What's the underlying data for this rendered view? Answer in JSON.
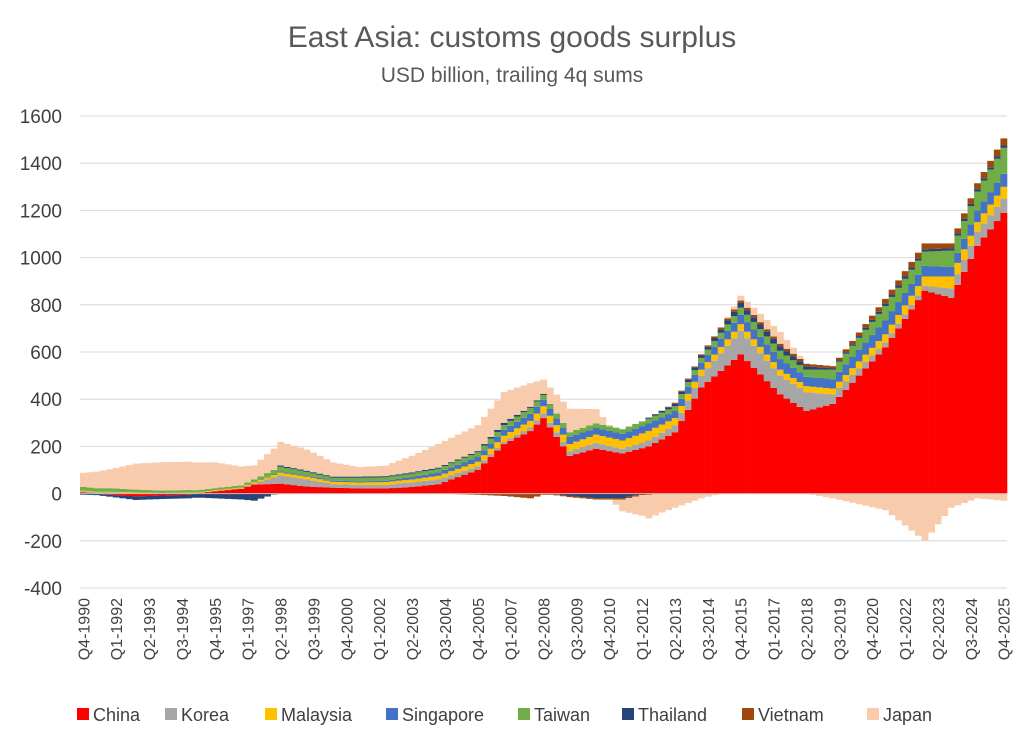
{
  "chart_data": {
    "type": "area",
    "stacked": true,
    "title": "East Asia: customs goods surplus",
    "subtitle": "USD billion, trailing 4q sums",
    "xlabel": "",
    "ylabel": "",
    "ylim": [
      -400,
      1600
    ],
    "yticks": [
      -400,
      -200,
      0,
      200,
      400,
      600,
      800,
      1000,
      1200,
      1400,
      1600
    ],
    "xtick_labels": [
      "Q4-1990",
      "Q1-1992",
      "Q2-1993",
      "Q3-1994",
      "Q4-1995",
      "Q1-1997",
      "Q2-1998",
      "Q3-1999",
      "Q4-2000",
      "Q1-2002",
      "Q2-2003",
      "Q3-2004",
      "Q4-2005",
      "Q1-2007",
      "Q2-2008",
      "Q3-2009",
      "Q4-2010",
      "Q1-2012",
      "Q2-2013",
      "Q3-2014",
      "Q4-2015",
      "Q1-2017",
      "Q2-2018",
      "Q3-2019",
      "Q4-2020",
      "Q1-2022",
      "Q2-2023",
      "Q3-2024",
      "Q4-2025"
    ],
    "grid": true,
    "legend_position": "bottom",
    "anchor_quarters": [
      0,
      5,
      10,
      15,
      20,
      25,
      30,
      35,
      40,
      45,
      50,
      55,
      60,
      65,
      70,
      75,
      80,
      85,
      90,
      95,
      100,
      105,
      110,
      115,
      120,
      125,
      130,
      135,
      140
    ],
    "series": [
      {
        "name": "China",
        "color": "#FF0000",
        "values": [
          5,
          -5,
          -12,
          -8,
          -5,
          10,
          20,
          38,
          42,
          30,
          25,
          22,
          22,
          28,
          40,
          100,
          210,
          265,
          320,
          160,
          190,
          170,
          200,
          260,
          450,
          590,
          420,
          350,
          380,
          620,
          860,
          830,
          1050,
          1190
        ]
      },
      {
        "name": "Korea",
        "color": "#A6A6A6",
        "values": [
          5,
          5,
          2,
          0,
          2,
          2,
          2,
          5,
          35,
          30,
          15,
          15,
          15,
          20,
          20,
          15,
          10,
          15,
          20,
          20,
          25,
          20,
          25,
          30,
          50,
          100,
          80,
          80,
          40,
          20,
          20,
          40,
          60,
          60
        ]
      },
      {
        "name": "Malaysia",
        "color": "#FFC000",
        "values": [
          3,
          3,
          3,
          3,
          3,
          3,
          3,
          5,
          12,
          12,
          10,
          10,
          12,
          12,
          15,
          20,
          25,
          28,
          30,
          30,
          35,
          35,
          40,
          30,
          25,
          28,
          25,
          25,
          25,
          35,
          40,
          50,
          40,
          50
        ]
      },
      {
        "name": "Singapore",
        "color": "#4472C4",
        "values": [
          0,
          0,
          0,
          0,
          0,
          0,
          0,
          0,
          5,
          5,
          5,
          5,
          5,
          10,
          15,
          20,
          25,
          30,
          28,
          30,
          28,
          28,
          32,
          30,
          30,
          40,
          45,
          40,
          40,
          60,
          45,
          40,
          50,
          55
        ]
      },
      {
        "name": "Taiwan",
        "color": "#70AD47",
        "values": [
          15,
          15,
          12,
          10,
          10,
          8,
          10,
          12,
          20,
          15,
          12,
          15,
          15,
          15,
          15,
          20,
          20,
          25,
          20,
          20,
          20,
          20,
          20,
          20,
          20,
          30,
          35,
          30,
          40,
          60,
          60,
          70,
          80,
          110
        ]
      },
      {
        "name": "Thailand",
        "color": "#264478",
        "values": [
          -5,
          -8,
          -15,
          -15,
          -15,
          -20,
          -25,
          -30,
          5,
          5,
          5,
          5,
          5,
          5,
          5,
          5,
          10,
          5,
          5,
          -10,
          -20,
          -20,
          5,
          10,
          10,
          20,
          20,
          15,
          5,
          10,
          10,
          10,
          10,
          10
        ]
      },
      {
        "name": "Vietnam",
        "color": "#9E480E",
        "values": [
          0,
          0,
          0,
          0,
          0,
          0,
          0,
          0,
          0,
          0,
          0,
          0,
          0,
          0,
          0,
          -5,
          -10,
          -20,
          -5,
          -5,
          -5,
          -5,
          -5,
          5,
          5,
          10,
          10,
          10,
          10,
          20,
          25,
          20,
          25,
          30
        ]
      },
      {
        "name": "Japan",
        "color": "#F8CBAD",
        "values": [
          60,
          80,
          110,
          120,
          120,
          110,
          80,
          60,
          100,
          90,
          60,
          40,
          45,
          70,
          100,
          110,
          130,
          100,
          60,
          100,
          60,
          -50,
          -100,
          -60,
          -20,
          20,
          50,
          0,
          -20,
          -70,
          -200,
          -60,
          -20,
          -30
        ]
      }
    ],
    "series_quarters": [
      0,
      4,
      8,
      12,
      16,
      20,
      24,
      26,
      30,
      34,
      38,
      42,
      46,
      50,
      54,
      60,
      64,
      68,
      70,
      74,
      78,
      82,
      86,
      90,
      94,
      100,
      106,
      110,
      114,
      122,
      128,
      132,
      136,
      140
    ]
  },
  "icons": {
    "legend_marker": "square-swatch"
  }
}
